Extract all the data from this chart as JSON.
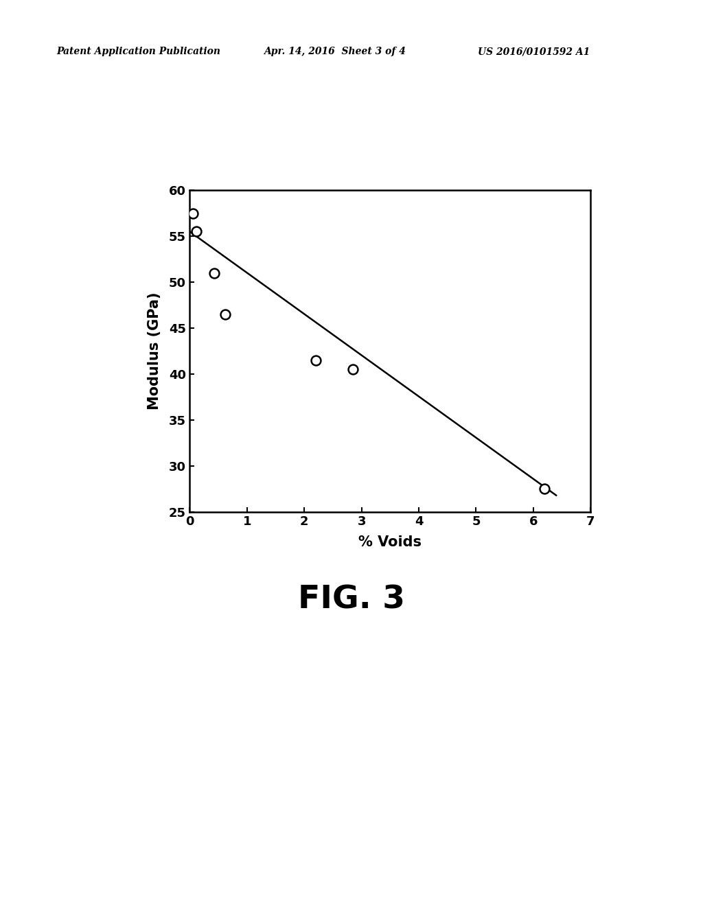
{
  "scatter_x": [
    0.05,
    0.12,
    0.42,
    0.62,
    2.2,
    2.85,
    6.2
  ],
  "scatter_y": [
    57.5,
    55.5,
    51.0,
    46.5,
    41.5,
    40.5,
    27.5
  ],
  "line_x": [
    0.0,
    6.4
  ],
  "line_y": [
    55.5,
    26.8
  ],
  "xlabel": "% Voids",
  "ylabel": "Modulus (GPa)",
  "fig_caption": "FIG. 3",
  "header_left": "Patent Application Publication",
  "header_center": "Apr. 14, 2016  Sheet 3 of 4",
  "header_right": "US 2016/0101592 A1",
  "xlim": [
    0,
    7
  ],
  "ylim": [
    25,
    60
  ],
  "xticks": [
    0,
    1,
    2,
    3,
    4,
    5,
    6,
    7
  ],
  "yticks": [
    25,
    30,
    35,
    40,
    45,
    50,
    55,
    60
  ],
  "marker_size": 10,
  "line_color": "#000000",
  "marker_color": "#ffffff",
  "marker_edge_color": "#000000",
  "background_color": "#ffffff",
  "text_color": "#000000"
}
